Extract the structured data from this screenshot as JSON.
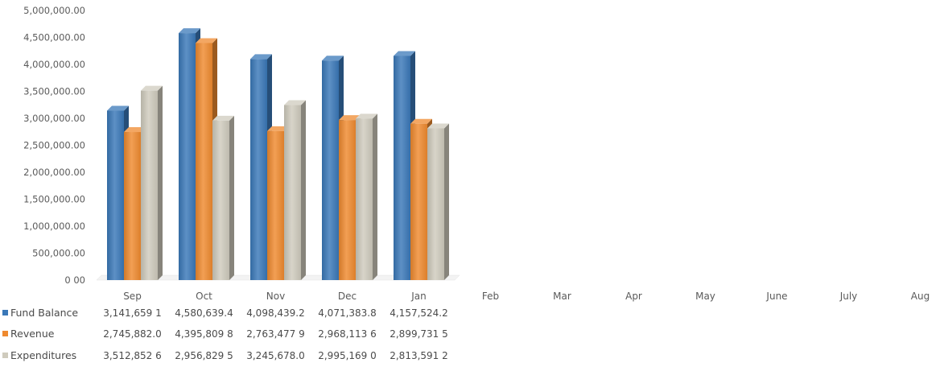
{
  "chart_data": {
    "type": "bar",
    "title": "",
    "xlabel": "",
    "ylabel": "",
    "ylim": [
      0,
      5000000
    ],
    "yticks": [
      0,
      500000,
      1000000,
      1500000,
      2000000,
      2500000,
      3000000,
      3500000,
      4000000,
      4500000,
      5000000
    ],
    "ytick_labels": [
      "0 00",
      "500,000.00",
      "1,000,000.00",
      "1,500,000.00",
      "2,000,000.00",
      "2,500,000.00",
      "3,000,000.00",
      "3,500,000.00",
      "4,000,000.00",
      "4,500,000.00",
      "5,000,000.00"
    ],
    "categories": [
      "Sep",
      "Oct",
      "Nov",
      "Dec",
      "Jan",
      "Feb",
      "Mar",
      "Apr",
      "May",
      "June",
      "July",
      "Aug"
    ],
    "grid": false,
    "legend": "bottom-left data table",
    "series": [
      {
        "name": "Fund Balance",
        "color": "#3a78b8",
        "values": [
          3141659.1,
          4580639.4,
          4098439.2,
          4071383.8,
          4157524.2,
          null,
          null,
          null,
          null,
          null,
          null,
          null
        ],
        "table_labels": [
          "3,141,659 1",
          "4,580,639.4",
          "4,098,439.2",
          "4,071,383.8",
          "4,157,524.2"
        ]
      },
      {
        "name": "Revenue",
        "color": "#ef8a2f",
        "values": [
          2745882.0,
          4395809.8,
          2763477.9,
          2968113.6,
          2899731.5,
          null,
          null,
          null,
          null,
          null,
          null,
          null
        ],
        "table_labels": [
          "2,745,882.0",
          "4,395,809 8",
          "2,763,477 9",
          "2,968,113 6",
          "2,899,731 5"
        ]
      },
      {
        "name": "Expenditures",
        "color": "#cfcbbd",
        "values": [
          3512852.6,
          2956829.5,
          3245678.0,
          2995169.0,
          2813591.2,
          null,
          null,
          null,
          null,
          null,
          null,
          null
        ],
        "table_labels": [
          "3,512,852 6",
          "2,956,829 5",
          "3,245,678.0",
          "2,995,169 0",
          "2,813,591 2"
        ]
      }
    ]
  }
}
